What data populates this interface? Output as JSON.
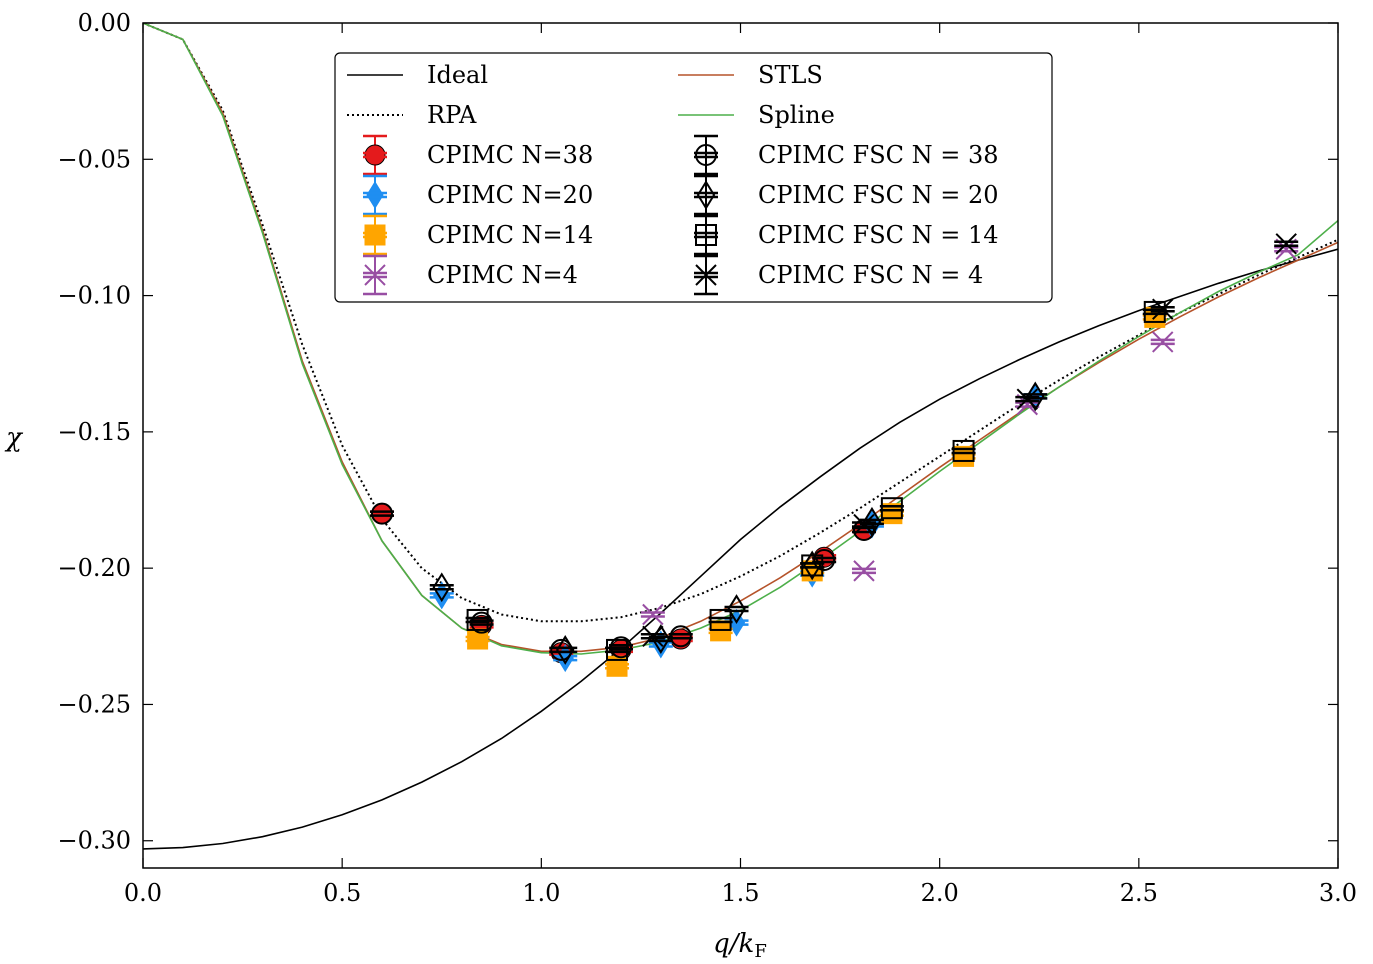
{
  "chart_data": {
    "type": "line",
    "title": "",
    "xlabel": "q/kF",
    "ylabel": "χ",
    "xlim": [
      0.0,
      3.0
    ],
    "ylim": [
      -0.31,
      0.0
    ],
    "x_ticks": [
      "0.0",
      "0.5",
      "1.0",
      "1.5",
      "2.0",
      "2.5",
      "3.0"
    ],
    "y_ticks": [
      "0.00",
      "−0.05",
      "−0.10",
      "−0.15",
      "−0.20",
      "−0.25",
      "−0.30"
    ],
    "x_tick_values": [
      0.0,
      0.5,
      1.0,
      1.5,
      2.0,
      2.5,
      3.0
    ],
    "y_tick_values": [
      0.0,
      -0.05,
      -0.1,
      -0.15,
      -0.2,
      -0.25,
      -0.3
    ],
    "legend_position": "top-center",
    "series": [
      {
        "name": "Ideal",
        "kind": "line",
        "color": "#000000",
        "dash": "solid",
        "x": [
          0,
          0.1,
          0.2,
          0.3,
          0.4,
          0.5,
          0.6,
          0.7,
          0.8,
          0.9,
          1.0,
          1.1,
          1.2,
          1.3,
          1.4,
          1.5,
          1.6,
          1.7,
          1.8,
          1.9,
          2.0,
          2.1,
          2.2,
          2.3,
          2.4,
          2.5,
          2.6,
          2.7,
          2.8,
          2.9,
          3.0
        ],
        "y": [
          -0.303,
          -0.3025,
          -0.301,
          -0.2985,
          -0.295,
          -0.2905,
          -0.285,
          -0.2785,
          -0.271,
          -0.2625,
          -0.2525,
          -0.2415,
          -0.2295,
          -0.2165,
          -0.203,
          -0.1895,
          -0.1775,
          -0.1665,
          -0.156,
          -0.1465,
          -0.138,
          -0.1305,
          -0.1235,
          -0.117,
          -0.111,
          -0.1055,
          -0.1005,
          -0.0955,
          -0.091,
          -0.087,
          -0.083
        ]
      },
      {
        "name": "RPA",
        "kind": "line",
        "color": "#000000",
        "dash": "dotted",
        "x": [
          0,
          0.1,
          0.2,
          0.3,
          0.4,
          0.5,
          0.6,
          0.7,
          0.8,
          0.9,
          1.0,
          1.1,
          1.2,
          1.3,
          1.4,
          1.5,
          1.6,
          1.7,
          1.8,
          1.9,
          2.0,
          2.1,
          2.2,
          2.3,
          2.4,
          2.5,
          2.6,
          2.7,
          2.8,
          2.9,
          3.0
        ],
        "y": [
          0.0,
          -0.006,
          -0.032,
          -0.074,
          -0.118,
          -0.155,
          -0.182,
          -0.2,
          -0.211,
          -0.217,
          -0.2195,
          -0.2195,
          -0.218,
          -0.2145,
          -0.2095,
          -0.203,
          -0.1955,
          -0.187,
          -0.178,
          -0.1685,
          -0.159,
          -0.1495,
          -0.14,
          -0.131,
          -0.1225,
          -0.1145,
          -0.1065,
          -0.0995,
          -0.0925,
          -0.086,
          -0.0795
        ]
      },
      {
        "name": "STLS",
        "kind": "line",
        "color": "#b5532a",
        "dash": "solid",
        "x": [
          0,
          0.1,
          0.2,
          0.3,
          0.4,
          0.5,
          0.6,
          0.7,
          0.8,
          0.9,
          1.0,
          1.1,
          1.2,
          1.3,
          1.4,
          1.5,
          1.6,
          1.7,
          1.8,
          1.9,
          2.0,
          2.1,
          2.2,
          2.3,
          2.4,
          2.5,
          2.6,
          2.7,
          2.8,
          2.9,
          3.0
        ],
        "y": [
          0.0,
          -0.006,
          -0.033,
          -0.076,
          -0.124,
          -0.161,
          -0.19,
          -0.21,
          -0.222,
          -0.228,
          -0.2305,
          -0.2305,
          -0.229,
          -0.2255,
          -0.2195,
          -0.212,
          -0.2035,
          -0.194,
          -0.184,
          -0.1735,
          -0.163,
          -0.153,
          -0.143,
          -0.1335,
          -0.1245,
          -0.116,
          -0.108,
          -0.1005,
          -0.0935,
          -0.087,
          -0.0805
        ]
      },
      {
        "name": "Spline",
        "kind": "line",
        "color": "#4daf4a",
        "dash": "solid",
        "x": [
          0,
          0.1,
          0.2,
          0.3,
          0.4,
          0.5,
          0.6,
          0.7,
          0.8,
          0.9,
          1.0,
          1.1,
          1.2,
          1.3,
          1.4,
          1.5,
          1.6,
          1.7,
          1.8,
          1.9,
          2.0,
          2.1,
          2.2,
          2.3,
          2.4,
          2.5,
          2.6,
          2.7,
          2.8,
          2.9,
          3.0
        ],
        "y": [
          0.0,
          -0.006,
          -0.034,
          -0.077,
          -0.125,
          -0.162,
          -0.19,
          -0.21,
          -0.222,
          -0.2285,
          -0.231,
          -0.2315,
          -0.23,
          -0.227,
          -0.222,
          -0.2155,
          -0.207,
          -0.197,
          -0.1865,
          -0.1755,
          -0.1645,
          -0.154,
          -0.1435,
          -0.1335,
          -0.124,
          -0.115,
          -0.1065,
          -0.0985,
          -0.0915,
          -0.085,
          -0.0725
        ]
      },
      {
        "name": "CPIMC N=38",
        "kind": "points",
        "marker": "circle",
        "color": "#e41a1c",
        "x": [
          0.6,
          0.85,
          1.05,
          1.2,
          1.35,
          1.71,
          1.81
        ],
        "y": [
          -0.18,
          -0.221,
          -0.231,
          -0.23,
          -0.226,
          -0.196,
          -0.186
        ]
      },
      {
        "name": "CPIMC N=20",
        "kind": "points",
        "marker": "diamond",
        "color": "#1f8ef1",
        "x": [
          0.75,
          1.06,
          1.3,
          1.49,
          1.68,
          1.83,
          2.24
        ],
        "y": [
          -0.21,
          -0.233,
          -0.228,
          -0.22,
          -0.202,
          -0.184,
          -0.137
        ]
      },
      {
        "name": "CPIMC N=14",
        "kind": "points",
        "marker": "square",
        "color": "#ffa500",
        "x": [
          0.84,
          1.19,
          1.45,
          1.68,
          1.88,
          2.06,
          2.54
        ],
        "y": [
          -0.226,
          -0.236,
          -0.223,
          -0.201,
          -0.18,
          -0.159,
          -0.108
        ]
      },
      {
        "name": "CPIMC N=4",
        "kind": "points",
        "marker": "x",
        "color": "#984ea3",
        "x": [
          1.28,
          1.81,
          2.22,
          2.56,
          2.87
        ],
        "y": [
          -0.217,
          -0.201,
          -0.14,
          -0.117,
          -0.083
        ]
      },
      {
        "name": "CPIMC FSC N = 38",
        "kind": "points",
        "marker": "open-circle",
        "color": "#000000",
        "x": [
          0.6,
          0.85,
          1.05,
          1.2,
          1.35,
          1.71,
          1.81
        ],
        "y": [
          -0.18,
          -0.22,
          -0.23,
          -0.229,
          -0.225,
          -0.197,
          -0.186
        ]
      },
      {
        "name": "CPIMC FSC N = 20",
        "kind": "points",
        "marker": "open-diamond",
        "color": "#000000",
        "x": [
          0.75,
          1.06,
          1.3,
          1.49,
          1.68,
          1.83,
          2.24
        ],
        "y": [
          -0.207,
          -0.23,
          -0.226,
          -0.215,
          -0.199,
          -0.183,
          -0.137
        ]
      },
      {
        "name": "CPIMC FSC N = 14",
        "kind": "points",
        "marker": "open-square",
        "color": "#000000",
        "x": [
          0.84,
          1.19,
          1.45,
          1.68,
          1.88,
          2.06,
          2.54
        ],
        "y": [
          -0.219,
          -0.23,
          -0.219,
          -0.199,
          -0.178,
          -0.157,
          -0.106
        ]
      },
      {
        "name": "CPIMC FSC N = 4",
        "kind": "points",
        "marker": "open-x",
        "color": "#000000",
        "x": [
          1.28,
          1.81,
          2.22,
          2.56,
          2.87
        ],
        "y": [
          -0.225,
          -0.184,
          -0.138,
          -0.105,
          -0.081
        ]
      }
    ],
    "legend": [
      {
        "label": "Ideal",
        "series": 0
      },
      {
        "label": "STLS",
        "series": 2
      },
      {
        "label": "RPA",
        "series": 1
      },
      {
        "label": "Spline",
        "series": 3
      },
      {
        "label": "CPIMC N=38",
        "series": 4
      },
      {
        "label": "CPIMC FSC N = 38",
        "series": 8
      },
      {
        "label": "CPIMC N=20",
        "series": 5
      },
      {
        "label": "CPIMC FSC N = 20",
        "series": 9
      },
      {
        "label": "CPIMC N=14",
        "series": 6
      },
      {
        "label": "CPIMC FSC N = 14",
        "series": 10
      },
      {
        "label": "CPIMC N=4",
        "series": 7
      },
      {
        "label": "CPIMC FSC N = 4",
        "series": 11
      }
    ]
  }
}
